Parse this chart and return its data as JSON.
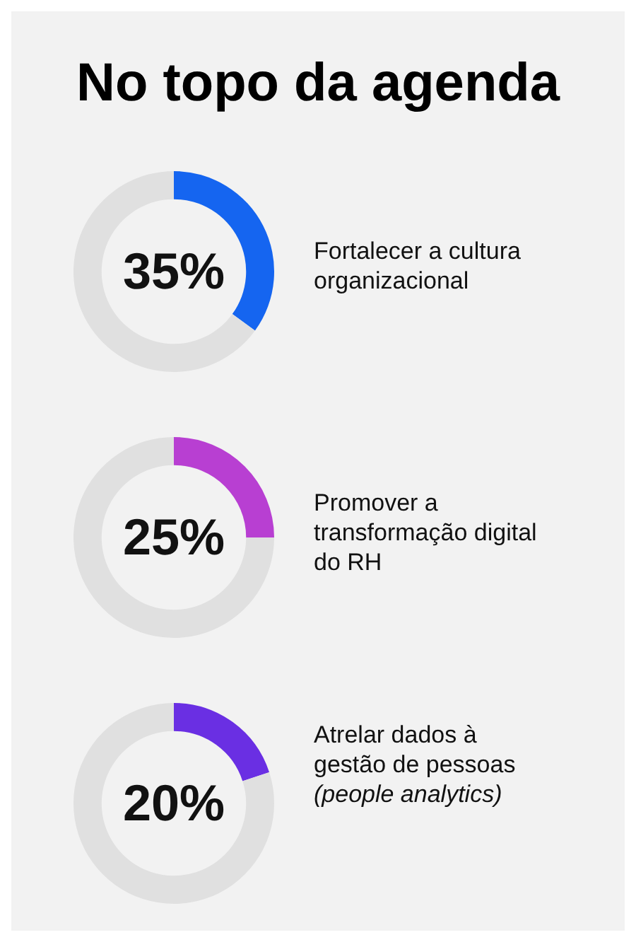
{
  "chart_data": [
    {
      "type": "donut",
      "title": "No topo da agenda",
      "categories": [
        "Fortalecer a cultura organizacional",
        null
      ],
      "values": [
        35,
        65
      ],
      "colors": [
        "#1565f0",
        "#e0e0e0"
      ],
      "value_labels": [
        "35%",
        null
      ],
      "legend": false
    },
    {
      "type": "donut",
      "categories": [
        "Promover a transformação digital do RH",
        null
      ],
      "values": [
        25,
        75
      ],
      "colors": [
        "#b83fd2",
        "#e0e0e0"
      ],
      "value_labels": [
        "25%",
        null
      ],
      "legend": false
    },
    {
      "type": "donut",
      "categories": [
        "Atrelar dados à gestão de pessoas (people analytics)",
        null
      ],
      "values": [
        20,
        80
      ],
      "colors": [
        "#6a2fe3",
        "#e0e0e0"
      ],
      "value_labels": [
        "20%",
        null
      ],
      "legend": false
    }
  ]
}
